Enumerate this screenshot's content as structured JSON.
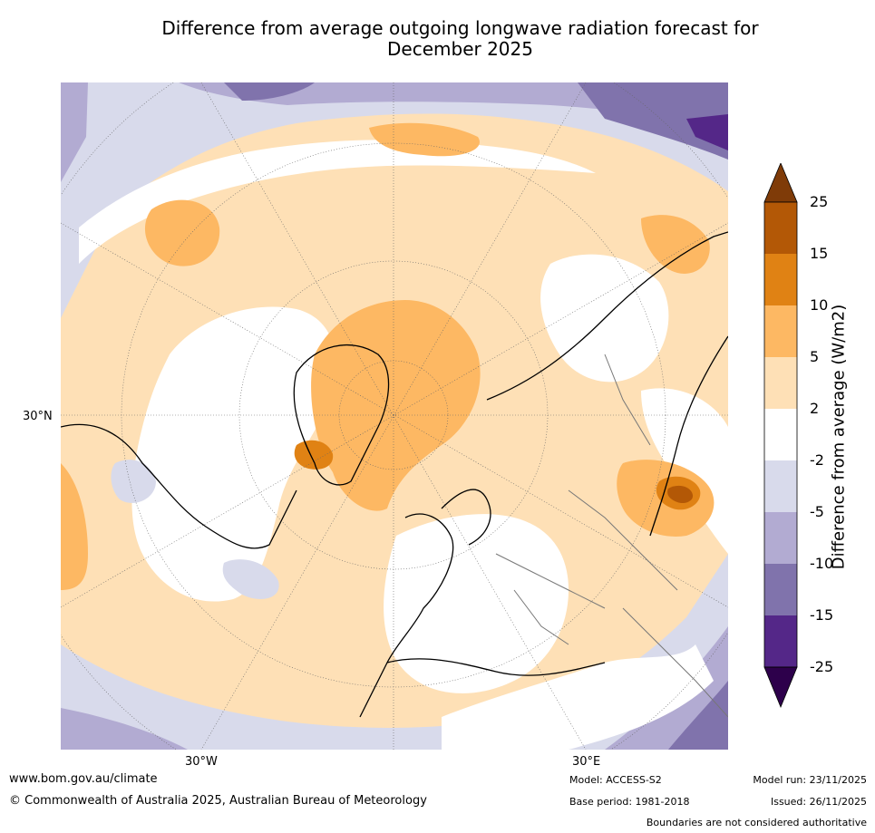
{
  "title_line1": "Difference from average outgoing longwave radiation forecast for",
  "title_line2": "December 2025",
  "map": {
    "lat_label": "30°N",
    "lon_labels": [
      "30°W",
      "30°E"
    ]
  },
  "colorbar": {
    "label": "Difference from average (W/m2)",
    "ticks": [
      "25",
      "15",
      "10",
      "5",
      "2",
      "-2",
      "-5",
      "-10",
      "-15",
      "-25"
    ],
    "colors": {
      "over": "#7f3b08",
      "15_25": "#b35806",
      "10_15": "#e08214",
      "5_10": "#fdb863",
      "2_5": "#fee0b6",
      "neutral": "#ffffff",
      "m5_m2": "#d8daeb",
      "m10_m5": "#b2abd2",
      "m15_m10": "#8073ac",
      "m25_m15": "#542788",
      "under": "#2d004b"
    }
  },
  "footer": {
    "website": "www.bom.gov.au/climate",
    "copyright": "© Commonwealth of Australia 2025, Australian Bureau of Meteorology",
    "model": "Model: ACCESS-S2",
    "base_period": "Base period: 1981-2018",
    "model_run": "Model run: 23/11/2025",
    "issued": "Issued: 26/11/2025",
    "disclaimer": "Boundaries are not considered authoritative"
  }
}
